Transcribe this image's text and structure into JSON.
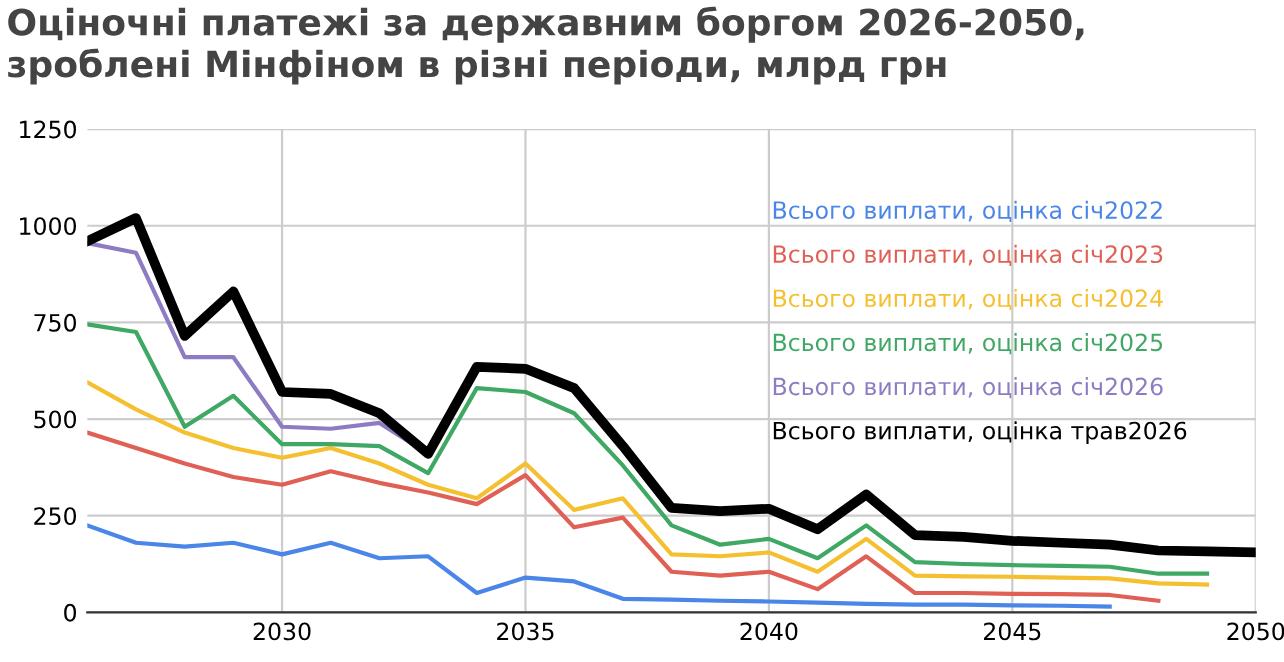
{
  "chart_data": {
    "type": "line",
    "title": "Оціночні платежі за державним боргом 2026-2050, зроблені Мінфіном в різні періоди, млрд грн",
    "x": [
      2026,
      2027,
      2028,
      2029,
      2030,
      2031,
      2032,
      2033,
      2034,
      2035,
      2036,
      2037,
      2038,
      2039,
      2040,
      2041,
      2042,
      2043,
      2044,
      2045,
      2046,
      2047,
      2048,
      2049,
      2050
    ],
    "series": [
      {
        "name": "Всього виплати, оцінка січ2022",
        "color": "#4a86e8",
        "values": [
          225,
          180,
          170,
          180,
          150,
          180,
          140,
          145,
          50,
          90,
          80,
          35,
          33,
          30,
          28,
          25,
          22,
          20,
          20,
          18,
          17,
          15,
          null,
          null,
          null
        ]
      },
      {
        "name": "Всього виплати, оцінка січ2023",
        "color": "#e06055",
        "values": [
          465,
          425,
          385,
          350,
          330,
          365,
          335,
          310,
          280,
          355,
          220,
          245,
          105,
          95,
          105,
          60,
          145,
          50,
          50,
          48,
          47,
          45,
          30,
          null,
          null
        ]
      },
      {
        "name": "Всього виплати, оцінка січ2024",
        "color": "#f4c030",
        "values": [
          595,
          525,
          465,
          425,
          400,
          425,
          385,
          330,
          295,
          385,
          265,
          295,
          150,
          145,
          155,
          105,
          190,
          95,
          93,
          92,
          90,
          88,
          75,
          72,
          null
        ]
      },
      {
        "name": "Всього виплати, оцінка січ2025",
        "color": "#3fa864",
        "values": [
          745,
          725,
          480,
          560,
          435,
          435,
          430,
          360,
          580,
          570,
          515,
          380,
          225,
          175,
          190,
          140,
          225,
          130,
          125,
          122,
          120,
          118,
          100,
          100,
          null
        ]
      },
      {
        "name": "Всього виплати, оцінка січ2026",
        "color": "#8e7cc3",
        "values": [
          955,
          930,
          660,
          660,
          480,
          475,
          490,
          410,
          null,
          null,
          null,
          null,
          null,
          null,
          null,
          null,
          null,
          null,
          null,
          null,
          null,
          null,
          null,
          null,
          null
        ]
      },
      {
        "name": "Всього виплати, оцінка трав2026",
        "color": "#000000",
        "values": [
          960,
          1020,
          715,
          830,
          570,
          565,
          515,
          410,
          635,
          630,
          580,
          430,
          270,
          262,
          268,
          215,
          305,
          200,
          195,
          185,
          180,
          175,
          160,
          158,
          155
        ]
      }
    ],
    "xlim": [
      2026,
      2050
    ],
    "xticks": [
      2030,
      2035,
      2040,
      2045,
      2050
    ],
    "ylim": [
      0,
      1250
    ],
    "yticks": [
      0,
      250,
      500,
      750,
      1000,
      1250
    ],
    "grid": true,
    "legend": "right",
    "marker": "none",
    "line_style": "solid"
  }
}
